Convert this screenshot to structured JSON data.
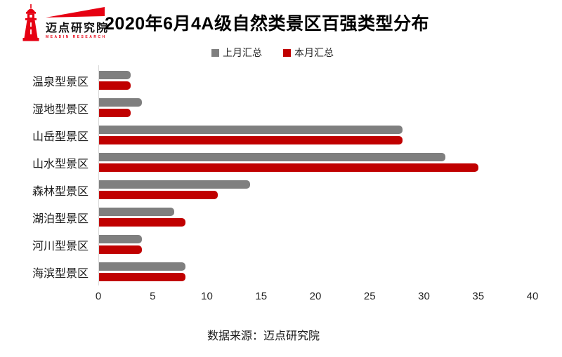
{
  "logo": {
    "brand_cn": "迈点研究院",
    "brand_en": "MEADIN RESEARCH",
    "brand_color": "#e60012"
  },
  "header": {
    "title": "2020年6月4A级自然类景区百强类型分布"
  },
  "legend": [
    {
      "label": "上月汇总",
      "color": "#7F7F7F"
    },
    {
      "label": "本月汇总",
      "color": "#C00000"
    }
  ],
  "chart_data": {
    "type": "bar",
    "orientation": "horizontal",
    "title": "2020年6月4A级自然类景区百强类型分布",
    "categories": [
      "温泉型景区",
      "湿地型景区",
      "山岳型景区",
      "山水型景区",
      "森林型景区",
      "湖泊型景区",
      "河川型景区",
      "海滨型景区"
    ],
    "series": [
      {
        "name": "上月汇总",
        "color": "#7F7F7F",
        "values": [
          3,
          4,
          28,
          32,
          14,
          7,
          4,
          8
        ]
      },
      {
        "name": "本月汇总",
        "color": "#C00000",
        "values": [
          3,
          3,
          28,
          35,
          11,
          8,
          4,
          8
        ]
      }
    ],
    "xlim": [
      0,
      40
    ],
    "xticks": [
      0,
      5,
      10,
      15,
      20,
      25,
      30,
      35,
      40
    ],
    "grid": false,
    "legend_position": "top"
  },
  "footer": {
    "source": "数据来源：迈点研究院"
  }
}
